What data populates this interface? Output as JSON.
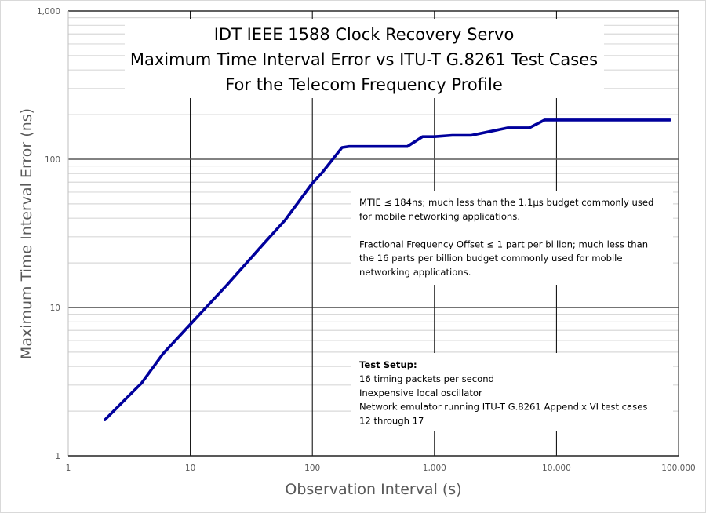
{
  "chart_data": {
    "type": "line",
    "title": [
      "IDT IEEE 1588 Clock Recovery Servo",
      "Maximum Time Interval Error vs ITU-T G.8261 Test Cases",
      "For the Telecom Frequency Profile"
    ],
    "xlabel": "Observation Interval (s)",
    "ylabel": "Maximum Time Interval Error (ns)",
    "xscale": "log",
    "yscale": "log",
    "xlim": [
      1,
      100000
    ],
    "ylim": [
      1,
      1000
    ],
    "xticks": [
      "1",
      "10",
      "100",
      "1,000",
      "10,000",
      "100,000"
    ],
    "yticks": [
      "1",
      "10",
      "100",
      "1,000"
    ],
    "grid": true,
    "line_color": "#00009c",
    "series": [
      {
        "x": [
          2,
          4,
          6,
          10,
          20,
          40,
          60,
          100,
          120,
          175,
          200,
          600,
          800,
          1000,
          1400,
          2000,
          4000,
          6000,
          8000,
          85000
        ],
        "y": [
          1.75,
          3.1,
          4.9,
          7.7,
          14.2,
          27,
          39,
          69,
          81,
          120,
          122,
          122,
          142,
          142,
          145,
          145,
          163,
          163,
          184,
          184
        ]
      }
    ],
    "annotations": {
      "mtie": [
        "MTIE ≤ 184ns;  much less than the 1.1µs budget commonly used",
        "for mobile networking applications.",
        "",
        "Fractional Frequency Offset ≤ 1 part per billion; much less than",
        "the 16 parts per billion budget commonly used for mobile",
        "networking applications."
      ],
      "setup_heading": "Test Setup:",
      "setup": [
        "16 timing packets per second",
        "Inexpensive local oscillator",
        "Network emulator running  ITU-T G.8261 Appendix VI test cases",
        "12 through 17"
      ]
    }
  }
}
